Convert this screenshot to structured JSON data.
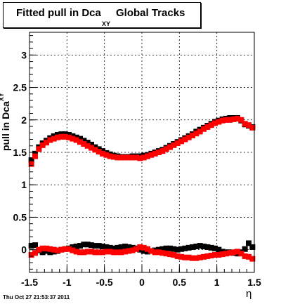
{
  "chart_data": {
    "type": "scatter",
    "title": "Fitted pull in Dca",
    "title_subscript": "XY",
    "title_tail": "Global Tracks",
    "xlabel": "η",
    "ylabel": "pull in Dca",
    "ylabel_subscript": "XY",
    "xlim": [
      -1.5,
      1.5
    ],
    "ylim": [
      -0.35,
      3.35
    ],
    "x_ticks": [
      -1.5,
      -1,
      -0.5,
      0,
      0.5,
      1,
      1.5
    ],
    "x_tick_labels": [
      "-1.5",
      "-1",
      "-0.5",
      "0",
      "0.5",
      "1",
      "1.5"
    ],
    "y_ticks": [
      0,
      0.5,
      1,
      1.5,
      2,
      2.5,
      3
    ],
    "y_tick_labels": [
      "0",
      "0.5",
      "1",
      "1.5",
      "2",
      "2.5",
      "3"
    ],
    "grid": true,
    "series": [
      {
        "color": "#000000",
        "marker": "square",
        "x": [
          -1.475,
          -1.425,
          -1.375,
          -1.325,
          -1.275,
          -1.225,
          -1.175,
          -1.125,
          -1.075,
          -1.025,
          -0.975,
          -0.925,
          -0.875,
          -0.825,
          -0.775,
          -0.725,
          -0.675,
          -0.625,
          -0.575,
          -0.525,
          -0.475,
          -0.425,
          -0.375,
          -0.325,
          -0.275,
          -0.225,
          -0.175,
          -0.125,
          -0.075,
          -0.025,
          0.025,
          0.075,
          0.125,
          0.175,
          0.225,
          0.275,
          0.325,
          0.375,
          0.425,
          0.475,
          0.525,
          0.575,
          0.625,
          0.675,
          0.725,
          0.775,
          0.825,
          0.875,
          0.925,
          0.975,
          1.025,
          1.075,
          1.125,
          1.175,
          1.225,
          1.275,
          1.325,
          1.375,
          1.425,
          1.475
        ],
        "y": [
          1.38,
          1.48,
          1.58,
          1.64,
          1.68,
          1.72,
          1.75,
          1.77,
          1.78,
          1.78,
          1.77,
          1.75,
          1.73,
          1.71,
          1.68,
          1.65,
          1.62,
          1.58,
          1.55,
          1.52,
          1.49,
          1.47,
          1.45,
          1.44,
          1.43,
          1.43,
          1.43,
          1.44,
          1.44,
          1.44,
          1.45,
          1.46,
          1.48,
          1.5,
          1.52,
          1.54,
          1.57,
          1.6,
          1.63,
          1.66,
          1.69,
          1.72,
          1.75,
          1.78,
          1.82,
          1.85,
          1.88,
          1.91,
          1.94,
          1.97,
          1.99,
          2.01,
          2.02,
          2.03,
          2.03,
          2.03,
          1.99,
          1.93,
          1.91,
          1.89
        ]
      },
      {
        "color": "#ff0000",
        "marker": "square",
        "x": [
          -1.475,
          -1.425,
          -1.375,
          -1.325,
          -1.275,
          -1.225,
          -1.175,
          -1.125,
          -1.075,
          -1.025,
          -0.975,
          -0.925,
          -0.875,
          -0.825,
          -0.775,
          -0.725,
          -0.675,
          -0.625,
          -0.575,
          -0.525,
          -0.475,
          -0.425,
          -0.375,
          -0.325,
          -0.275,
          -0.225,
          -0.175,
          -0.125,
          -0.075,
          -0.025,
          0.025,
          0.075,
          0.125,
          0.175,
          0.225,
          0.275,
          0.325,
          0.375,
          0.425,
          0.475,
          0.525,
          0.575,
          0.625,
          0.675,
          0.725,
          0.775,
          0.825,
          0.875,
          0.925,
          0.975,
          1.025,
          1.075,
          1.125,
          1.175,
          1.225,
          1.275,
          1.325,
          1.375,
          1.425,
          1.475
        ],
        "y": [
          1.32,
          1.44,
          1.55,
          1.61,
          1.65,
          1.69,
          1.71,
          1.73,
          1.74,
          1.74,
          1.73,
          1.71,
          1.69,
          1.66,
          1.63,
          1.6,
          1.57,
          1.54,
          1.51,
          1.48,
          1.46,
          1.44,
          1.43,
          1.42,
          1.42,
          1.42,
          1.42,
          1.42,
          1.42,
          1.41,
          1.42,
          1.44,
          1.46,
          1.48,
          1.5,
          1.52,
          1.55,
          1.58,
          1.61,
          1.64,
          1.67,
          1.7,
          1.73,
          1.76,
          1.79,
          1.82,
          1.86,
          1.89,
          1.92,
          1.95,
          1.97,
          1.99,
          2.0,
          2.0,
          2.01,
          2.02,
          2.0,
          1.94,
          1.92,
          1.88
        ]
      },
      {
        "color": "#000000",
        "marker": "square",
        "x": [
          -1.475,
          -1.425,
          -1.375,
          -1.325,
          -1.275,
          -1.225,
          -1.175,
          -1.125,
          -1.075,
          -1.025,
          -0.975,
          -0.925,
          -0.875,
          -0.825,
          -0.775,
          -0.725,
          -0.675,
          -0.625,
          -0.575,
          -0.525,
          -0.475,
          -0.425,
          -0.375,
          -0.325,
          -0.275,
          -0.225,
          -0.175,
          -0.125,
          -0.075,
          -0.025,
          0.025,
          0.075,
          0.125,
          0.175,
          0.225,
          0.275,
          0.325,
          0.375,
          0.425,
          0.475,
          0.525,
          0.575,
          0.625,
          0.675,
          0.725,
          0.775,
          0.825,
          0.875,
          0.925,
          0.975,
          1.025,
          1.075,
          1.125,
          1.175,
          1.225,
          1.275,
          1.325,
          1.375,
          1.425,
          1.475
        ],
        "y": [
          0.06,
          0.07,
          -0.01,
          -0.04,
          -0.02,
          -0.04,
          -0.03,
          -0.02,
          0.0,
          0.01,
          0.02,
          0.04,
          0.05,
          0.06,
          0.08,
          0.08,
          0.07,
          0.06,
          0.06,
          0.05,
          0.04,
          0.03,
          0.02,
          0.03,
          0.04,
          0.05,
          0.04,
          0.03,
          0.02,
          0.0,
          -0.02,
          -0.03,
          -0.02,
          -0.01,
          0.0,
          0.01,
          0.02,
          0.02,
          0.01,
          0.0,
          0.01,
          0.02,
          0.03,
          0.04,
          0.05,
          0.06,
          0.05,
          0.04,
          0.03,
          0.02,
          0.0,
          -0.03,
          -0.04,
          -0.04,
          -0.05,
          -0.06,
          -0.04,
          0.01,
          0.1,
          0.04
        ]
      },
      {
        "color": "#ff0000",
        "marker": "square",
        "x": [
          -1.475,
          -1.425,
          -1.375,
          -1.325,
          -1.275,
          -1.225,
          -1.175,
          -1.125,
          -1.075,
          -1.025,
          -0.975,
          -0.925,
          -0.875,
          -0.825,
          -0.775,
          -0.725,
          -0.675,
          -0.625,
          -0.575,
          -0.525,
          -0.475,
          -0.425,
          -0.375,
          -0.325,
          -0.275,
          -0.225,
          -0.175,
          -0.125,
          -0.075,
          -0.025,
          0.025,
          0.075,
          0.125,
          0.175,
          0.225,
          0.275,
          0.325,
          0.375,
          0.425,
          0.475,
          0.525,
          0.575,
          0.625,
          0.675,
          0.725,
          0.775,
          0.825,
          0.875,
          0.925,
          0.975,
          1.025,
          1.075,
          1.125,
          1.175,
          1.225,
          1.275,
          1.325,
          1.375,
          1.425,
          1.475
        ],
        "y": [
          -0.08,
          -0.05,
          0.0,
          0.02,
          0.02,
          0.01,
          0.0,
          -0.01,
          0.0,
          0.01,
          0.01,
          -0.01,
          -0.03,
          -0.04,
          -0.04,
          -0.03,
          -0.03,
          -0.04,
          -0.04,
          -0.04,
          -0.03,
          -0.03,
          -0.04,
          -0.04,
          -0.04,
          -0.03,
          -0.02,
          -0.01,
          0.01,
          0.04,
          0.03,
          0.01,
          -0.02,
          -0.04,
          -0.04,
          -0.05,
          -0.06,
          -0.07,
          -0.08,
          -0.1,
          -0.11,
          -0.12,
          -0.12,
          -0.13,
          -0.13,
          -0.12,
          -0.11,
          -0.1,
          -0.09,
          -0.08,
          -0.08,
          -0.07,
          -0.06,
          -0.05,
          -0.04,
          -0.03,
          -0.06,
          -0.1,
          -0.11,
          -0.14
        ]
      }
    ]
  },
  "footer": "Thu Oct 27 21:53:37 2011"
}
